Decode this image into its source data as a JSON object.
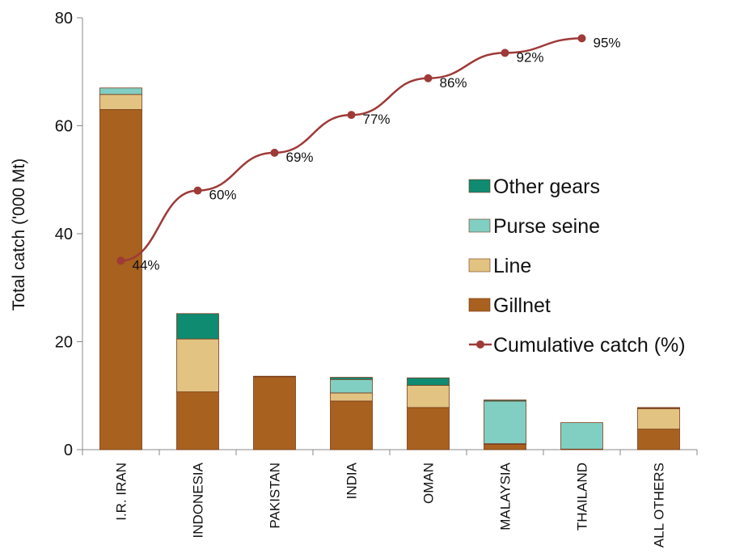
{
  "chart_data": {
    "type": "bar",
    "stacked": true,
    "ylabel": "Total catch ('000 Mt)",
    "ylim": [
      0,
      80
    ],
    "yticks": [
      0,
      20,
      40,
      60,
      80
    ],
    "grid": false,
    "legend_position": "right",
    "categories": [
      "I.R. IRAN",
      "INDONESIA",
      "PAKISTAN",
      "INDIA",
      "OMAN",
      "MALAYSIA",
      "THAILAND",
      "ALL OTHERS"
    ],
    "series": [
      {
        "name": "Gillnet",
        "color": "#A8611E",
        "values": [
          63.0,
          10.7,
          13.5,
          9.0,
          7.8,
          1.0,
          0.1,
          3.8
        ]
      },
      {
        "name": "Line",
        "color": "#E2C382",
        "values": [
          2.8,
          9.8,
          0.1,
          1.5,
          4.1,
          0.1,
          0.0,
          3.8
        ]
      },
      {
        "name": "Purse seine",
        "color": "#80CFC2",
        "values": [
          1.2,
          0.0,
          0.0,
          2.5,
          0.0,
          7.9,
          4.9,
          0.1
        ]
      },
      {
        "name": "Other gears",
        "color": "#0E8B71",
        "values": [
          0.0,
          4.7,
          0.0,
          0.4,
          1.4,
          0.2,
          0.0,
          0.1
        ]
      }
    ],
    "line_series": {
      "name": "Cumulative catch (%)",
      "color": "#9E3A38",
      "values_on_left_axis": [
        35,
        48,
        55,
        62,
        68.8,
        73.5,
        76.2
      ],
      "labels": [
        "44%",
        "60%",
        "69%",
        "77%",
        "86%",
        "92%",
        "95%"
      ]
    },
    "legend_order": [
      "Other gears",
      "Purse seine",
      "Line",
      "Gillnet",
      "Cumulative catch (%)"
    ]
  }
}
